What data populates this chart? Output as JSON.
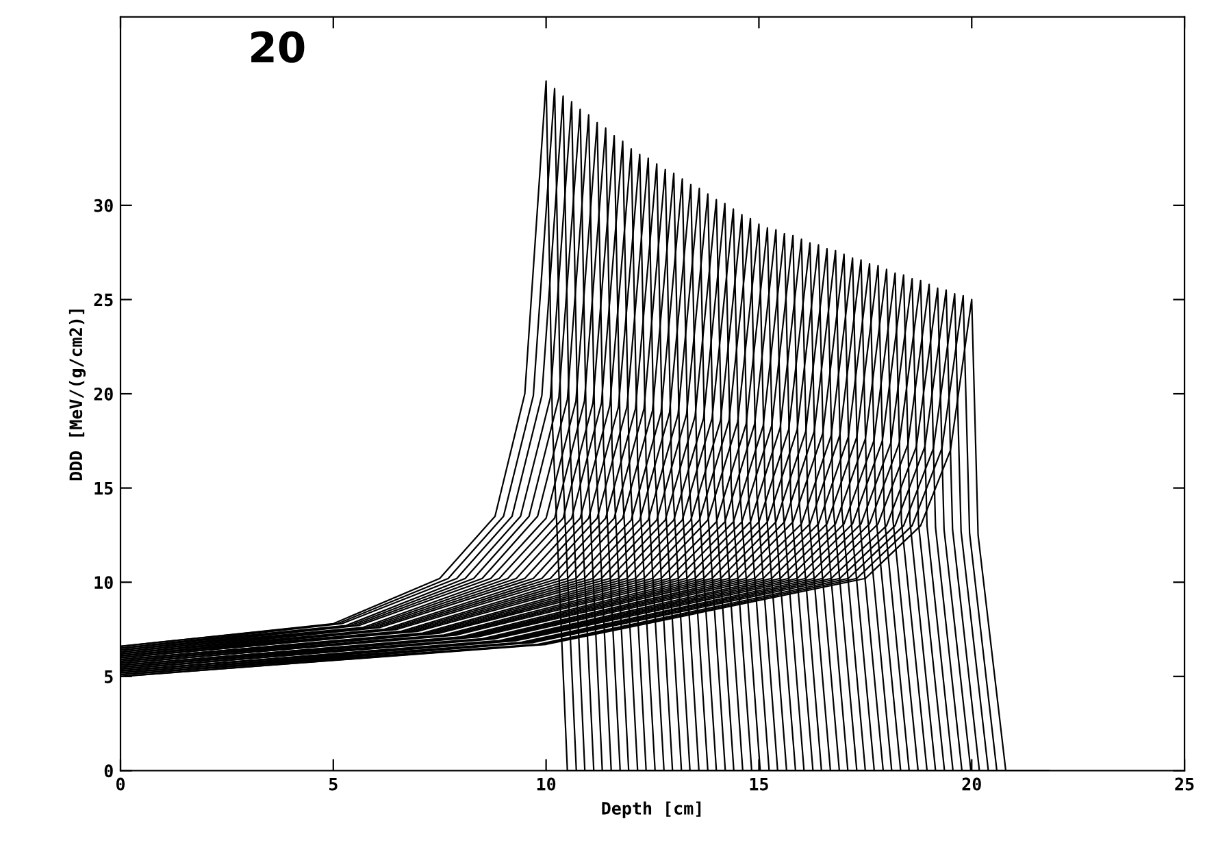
{
  "chart_data": {
    "type": "line",
    "xlabel": "Depth [cm]",
    "ylabel": "DDD [MeV/(g/cm2)]",
    "annotations": [
      "20"
    ],
    "xlim": [
      0,
      25
    ],
    "ylim": [
      0,
      40
    ],
    "xticks": [
      0,
      5,
      10,
      15,
      20,
      25
    ],
    "yticks": [
      0,
      5,
      10,
      15,
      20,
      25,
      30
    ],
    "grid": false,
    "legend": false,
    "marker": "none",
    "line_style": "solid",
    "series": [
      {
        "color": "#000000",
        "x": [
          0,
          5.0,
          7.5,
          8.8,
          9.5,
          10.0,
          10.15,
          10.5,
          21.8
        ],
        "values": [
          6.6,
          7.8,
          10.2,
          13.5,
          20.0,
          36.6,
          18.3,
          0,
          0
        ]
      },
      {
        "color": "#000000",
        "x": [
          0,
          5.1,
          7.7,
          9.0,
          9.7,
          10.2,
          10.35,
          10.71,
          21.8
        ],
        "values": [
          6.6,
          7.8,
          10.2,
          13.5,
          19.9,
          36.2,
          18.1,
          0,
          0
        ]
      },
      {
        "color": "#000000",
        "x": [
          0,
          5.2,
          7.9,
          9.2,
          9.9,
          10.4,
          10.55,
          10.91,
          21.8
        ],
        "values": [
          6.5,
          7.8,
          10.2,
          13.5,
          19.9,
          35.8,
          17.9,
          0,
          0
        ]
      },
      {
        "color": "#000000",
        "x": [
          0,
          5.3,
          8.1,
          9.4,
          10.1,
          10.6,
          10.75,
          11.12,
          21.8
        ],
        "values": [
          6.5,
          7.7,
          10.2,
          13.5,
          19.8,
          35.5,
          17.8,
          0,
          0
        ]
      },
      {
        "color": "#000000",
        "x": [
          0,
          5.4,
          8.3,
          9.6,
          10.3,
          10.8,
          10.95,
          11.32,
          21.8
        ],
        "values": [
          6.5,
          7.7,
          10.2,
          13.5,
          19.8,
          35.1,
          17.6,
          0,
          0
        ]
      },
      {
        "color": "#000000",
        "x": [
          0,
          5.5,
          8.5,
          9.8,
          10.5,
          11.0,
          11.15,
          11.53,
          21.8
        ],
        "values": [
          6.4,
          7.7,
          10.2,
          13.5,
          19.7,
          34.8,
          17.4,
          0,
          0
        ]
      },
      {
        "color": "#000000",
        "x": [
          0,
          5.6,
          8.7,
          10.0,
          10.7,
          11.2,
          11.35,
          11.74,
          21.8
        ],
        "values": [
          6.4,
          7.7,
          10.2,
          13.4,
          19.6,
          34.4,
          17.2,
          0,
          0
        ]
      },
      {
        "color": "#000000",
        "x": [
          0,
          5.7,
          8.9,
          10.2,
          10.9,
          11.4,
          11.55,
          11.94,
          21.8
        ],
        "values": [
          6.4,
          7.6,
          10.2,
          13.4,
          19.6,
          34.1,
          17.1,
          0,
          0
        ]
      },
      {
        "color": "#000000",
        "x": [
          0,
          5.8,
          9.1,
          10.4,
          11.1,
          11.6,
          11.75,
          12.15,
          21.8
        ],
        "values": [
          6.3,
          7.6,
          10.2,
          13.4,
          19.5,
          33.7,
          16.9,
          0,
          0
        ]
      },
      {
        "color": "#000000",
        "x": [
          0,
          5.9,
          9.3,
          10.6,
          11.3,
          11.8,
          11.95,
          12.35,
          21.8
        ],
        "values": [
          6.3,
          7.6,
          10.2,
          13.4,
          19.5,
          33.4,
          16.7,
          0,
          0
        ]
      },
      {
        "color": "#000000",
        "x": [
          0,
          6.0,
          9.5,
          10.8,
          11.5,
          12.0,
          12.15,
          12.56,
          21.8
        ],
        "values": [
          6.3,
          7.6,
          10.2,
          13.4,
          19.4,
          33.0,
          16.5,
          0,
          0
        ]
      },
      {
        "color": "#000000",
        "x": [
          0,
          6.1,
          9.7,
          11.0,
          11.7,
          12.2,
          12.35,
          12.77,
          21.8
        ],
        "values": [
          6.2,
          7.6,
          10.2,
          13.4,
          19.3,
          32.7,
          16.4,
          0,
          0
        ]
      },
      {
        "color": "#000000",
        "x": [
          0,
          6.2,
          9.9,
          11.2,
          11.9,
          12.4,
          12.55,
          12.97,
          21.8
        ],
        "values": [
          6.2,
          7.5,
          10.2,
          13.4,
          19.3,
          32.5,
          16.3,
          0,
          0
        ]
      },
      {
        "color": "#000000",
        "x": [
          0,
          6.3,
          10.1,
          11.4,
          12.1,
          12.6,
          12.75,
          13.18,
          21.8
        ],
        "values": [
          6.2,
          7.5,
          10.2,
          13.4,
          19.2,
          32.2,
          16.1,
          0,
          0
        ]
      },
      {
        "color": "#000000",
        "x": [
          0,
          6.4,
          10.3,
          11.6,
          12.3,
          12.8,
          12.95,
          13.38,
          21.8
        ],
        "values": [
          6.1,
          7.5,
          10.2,
          13.4,
          19.2,
          31.9,
          16.0,
          0,
          0
        ]
      },
      {
        "color": "#000000",
        "x": [
          0,
          6.5,
          10.5,
          11.8,
          12.5,
          13.0,
          13.15,
          13.59,
          21.8
        ],
        "values": [
          6.1,
          7.5,
          10.2,
          13.4,
          19.1,
          31.7,
          15.9,
          0,
          0
        ]
      },
      {
        "color": "#000000",
        "x": [
          0,
          6.6,
          10.7,
          12.0,
          12.7,
          13.2,
          13.35,
          13.8,
          21.8
        ],
        "values": [
          6.1,
          7.4,
          10.2,
          13.3,
          19.0,
          31.4,
          15.7,
          0,
          0
        ]
      },
      {
        "color": "#000000",
        "x": [
          0,
          6.7,
          10.9,
          12.2,
          12.9,
          13.4,
          13.55,
          14.0,
          21.8
        ],
        "values": [
          6.1,
          7.4,
          10.2,
          13.3,
          19.0,
          31.1,
          15.6,
          0,
          0
        ]
      },
      {
        "color": "#000000",
        "x": [
          0,
          6.8,
          11.1,
          12.4,
          13.1,
          13.6,
          13.75,
          14.21,
          21.8
        ],
        "values": [
          6.0,
          7.4,
          10.2,
          13.3,
          18.9,
          30.9,
          15.5,
          0,
          0
        ]
      },
      {
        "color": "#000000",
        "x": [
          0,
          6.9,
          11.3,
          12.6,
          13.3,
          13.8,
          13.95,
          14.41,
          21.8
        ],
        "values": [
          6.0,
          7.4,
          10.2,
          13.3,
          18.9,
          30.6,
          15.3,
          0,
          0
        ]
      },
      {
        "color": "#000000",
        "x": [
          0,
          7.0,
          11.5,
          12.8,
          13.5,
          14.0,
          14.15,
          14.62,
          21.8
        ],
        "values": [
          6.0,
          7.4,
          10.2,
          13.3,
          18.8,
          30.3,
          15.2,
          0,
          0
        ]
      },
      {
        "color": "#000000",
        "x": [
          0,
          7.1,
          11.7,
          13.0,
          13.7,
          14.2,
          14.35,
          14.83,
          21.8
        ],
        "values": [
          5.9,
          7.3,
          10.2,
          13.3,
          18.7,
          30.1,
          15.1,
          0,
          0
        ]
      },
      {
        "color": "#000000",
        "x": [
          0,
          7.2,
          11.9,
          13.2,
          13.9,
          14.4,
          14.55,
          15.03,
          21.8
        ],
        "values": [
          5.9,
          7.3,
          10.2,
          13.3,
          18.7,
          29.8,
          14.9,
          0,
          0
        ]
      },
      {
        "color": "#000000",
        "x": [
          0,
          7.3,
          12.1,
          13.4,
          14.1,
          14.6,
          14.75,
          15.24,
          21.8
        ],
        "values": [
          5.9,
          7.3,
          10.2,
          13.3,
          18.6,
          29.5,
          14.8,
          0,
          0
        ]
      },
      {
        "color": "#000000",
        "x": [
          0,
          7.4,
          12.3,
          13.6,
          14.3,
          14.8,
          14.95,
          15.44,
          21.8
        ],
        "values": [
          5.8,
          7.3,
          10.2,
          13.3,
          18.6,
          29.3,
          14.7,
          0,
          0
        ]
      },
      {
        "color": "#000000",
        "x": [
          0,
          7.5,
          12.5,
          13.8,
          14.5,
          15.0,
          15.15,
          15.65,
          21.8
        ],
        "values": [
          5.8,
          7.3,
          10.2,
          13.3,
          18.5,
          29.0,
          14.5,
          0,
          0
        ]
      },
      {
        "color": "#000000",
        "x": [
          0,
          7.6,
          12.7,
          14.0,
          14.7,
          15.2,
          15.35,
          15.86,
          21.8
        ],
        "values": [
          5.8,
          7.2,
          10.2,
          13.2,
          18.4,
          28.8,
          14.4,
          0,
          0
        ]
      },
      {
        "color": "#000000",
        "x": [
          0,
          7.7,
          12.9,
          14.2,
          14.9,
          15.4,
          15.55,
          16.06,
          21.8
        ],
        "values": [
          5.7,
          7.2,
          10.2,
          13.2,
          18.4,
          28.7,
          14.4,
          0,
          0
        ]
      },
      {
        "color": "#000000",
        "x": [
          0,
          7.8,
          13.1,
          14.4,
          15.1,
          15.6,
          15.75,
          16.27,
          21.8
        ],
        "values": [
          5.7,
          7.2,
          10.2,
          13.2,
          18.3,
          28.5,
          14.3,
          0,
          0
        ]
      },
      {
        "color": "#000000",
        "x": [
          0,
          7.9,
          13.3,
          14.6,
          15.3,
          15.8,
          15.95,
          16.47,
          21.8
        ],
        "values": [
          5.7,
          7.2,
          10.2,
          13.2,
          18.3,
          28.4,
          14.2,
          0,
          0
        ]
      },
      {
        "color": "#000000",
        "x": [
          0,
          8.0,
          13.5,
          14.8,
          15.5,
          16.0,
          16.15,
          16.68,
          21.8
        ],
        "values": [
          5.6,
          7.1,
          10.2,
          13.2,
          18.2,
          28.2,
          14.1,
          0,
          0
        ]
      },
      {
        "color": "#000000",
        "x": [
          0,
          8.1,
          13.7,
          15.0,
          15.7,
          16.2,
          16.35,
          16.89,
          21.8
        ],
        "values": [
          5.6,
          7.1,
          10.2,
          13.2,
          18.1,
          28.0,
          14.0,
          0,
          0
        ]
      },
      {
        "color": "#000000",
        "x": [
          0,
          8.2,
          13.9,
          15.2,
          15.9,
          16.4,
          16.55,
          17.09,
          21.8
        ],
        "values": [
          5.6,
          7.1,
          10.2,
          13.2,
          18.1,
          27.9,
          14.0,
          0,
          0
        ]
      },
      {
        "color": "#000000",
        "x": [
          0,
          8.3,
          14.1,
          15.4,
          16.1,
          16.6,
          16.75,
          17.3,
          21.8
        ],
        "values": [
          5.5,
          7.1,
          10.2,
          13.2,
          18.0,
          27.7,
          13.9,
          0,
          0
        ]
      },
      {
        "color": "#000000",
        "x": [
          0,
          8.4,
          14.3,
          15.6,
          16.3,
          16.8,
          16.95,
          17.5,
          21.8
        ],
        "values": [
          5.5,
          7.1,
          10.2,
          13.2,
          18.0,
          27.6,
          13.8,
          0,
          0
        ]
      },
      {
        "color": "#000000",
        "x": [
          0,
          8.5,
          14.5,
          15.8,
          16.5,
          17.0,
          17.15,
          17.71,
          21.8
        ],
        "values": [
          5.5,
          7.0,
          10.2,
          13.2,
          17.9,
          27.4,
          13.7,
          0,
          0
        ]
      },
      {
        "color": "#000000",
        "x": [
          0,
          8.6,
          14.7,
          16.0,
          16.7,
          17.2,
          17.35,
          17.92,
          21.8
        ],
        "values": [
          5.4,
          7.0,
          10.2,
          13.1,
          17.8,
          27.2,
          13.6,
          0,
          0
        ]
      },
      {
        "color": "#000000",
        "x": [
          0,
          8.7,
          14.9,
          16.2,
          16.9,
          17.4,
          17.55,
          18.12,
          21.8
        ],
        "values": [
          5.4,
          7.0,
          10.2,
          13.1,
          17.8,
          27.1,
          13.6,
          0,
          0
        ]
      },
      {
        "color": "#000000",
        "x": [
          0,
          8.8,
          15.1,
          16.4,
          17.1,
          17.6,
          17.75,
          18.33,
          21.8
        ],
        "values": [
          5.4,
          7.0,
          10.2,
          13.1,
          17.7,
          26.9,
          13.5,
          0,
          0
        ]
      },
      {
        "color": "#000000",
        "x": [
          0,
          8.9,
          15.3,
          16.6,
          17.3,
          17.8,
          17.95,
          18.53,
          21.8
        ],
        "values": [
          5.3,
          6.9,
          10.2,
          13.1,
          17.7,
          26.8,
          13.4,
          0,
          0
        ]
      },
      {
        "color": "#000000",
        "x": [
          0,
          9.0,
          15.5,
          16.8,
          17.5,
          18.0,
          18.15,
          18.74,
          21.8
        ],
        "values": [
          5.3,
          6.9,
          10.2,
          13.1,
          17.6,
          26.6,
          13.3,
          0,
          0
        ]
      },
      {
        "color": "#000000",
        "x": [
          0,
          9.1,
          15.7,
          17.0,
          17.7,
          18.2,
          18.35,
          18.95,
          21.8
        ],
        "values": [
          5.3,
          6.9,
          10.2,
          13.1,
          17.5,
          26.4,
          13.2,
          0,
          0
        ]
      },
      {
        "color": "#000000",
        "x": [
          0,
          9.2,
          15.9,
          17.2,
          17.9,
          18.4,
          18.55,
          19.15,
          21.8
        ],
        "values": [
          5.3,
          6.9,
          10.2,
          13.1,
          17.5,
          26.3,
          13.2,
          0,
          0
        ]
      },
      {
        "color": "#000000",
        "x": [
          0,
          9.3,
          16.1,
          17.4,
          18.1,
          18.6,
          18.75,
          19.36,
          21.8
        ],
        "values": [
          5.2,
          6.9,
          10.2,
          13.1,
          17.4,
          26.1,
          13.1,
          0,
          0
        ]
      },
      {
        "color": "#000000",
        "x": [
          0,
          9.4,
          16.3,
          17.6,
          18.3,
          18.8,
          18.95,
          19.56,
          21.8
        ],
        "values": [
          5.2,
          6.8,
          10.2,
          13.1,
          17.4,
          26.0,
          13.0,
          0,
          0
        ]
      },
      {
        "color": "#000000",
        "x": [
          0,
          9.5,
          16.5,
          17.8,
          18.5,
          19.0,
          19.15,
          19.77,
          21.8
        ],
        "values": [
          5.2,
          6.8,
          10.2,
          13.1,
          17.3,
          25.8,
          12.9,
          0,
          0
        ]
      },
      {
        "color": "#000000",
        "x": [
          0,
          9.6,
          16.7,
          18.0,
          18.7,
          19.2,
          19.35,
          19.98,
          21.8
        ],
        "values": [
          5.1,
          6.8,
          10.2,
          13.0,
          17.2,
          25.6,
          12.8,
          0,
          0
        ]
      },
      {
        "color": "#000000",
        "x": [
          0,
          9.7,
          16.9,
          18.2,
          18.9,
          19.4,
          19.55,
          20.18,
          21.8
        ],
        "values": [
          5.1,
          6.8,
          10.2,
          13.0,
          17.2,
          25.5,
          12.8,
          0,
          0
        ]
      },
      {
        "color": "#000000",
        "x": [
          0,
          9.8,
          17.1,
          18.4,
          19.1,
          19.6,
          19.75,
          20.39,
          21.8
        ],
        "values": [
          5.1,
          6.7,
          10.2,
          13.0,
          17.1,
          25.3,
          12.7,
          0,
          0
        ]
      },
      {
        "color": "#000000",
        "x": [
          0,
          9.9,
          17.3,
          18.6,
          19.3,
          19.8,
          19.95,
          20.59,
          21.8
        ],
        "values": [
          5.0,
          6.7,
          10.2,
          13.0,
          17.1,
          25.2,
          12.6,
          0,
          0
        ]
      },
      {
        "color": "#000000",
        "x": [
          0,
          10.0,
          17.5,
          18.8,
          19.5,
          20.0,
          20.15,
          20.8,
          21.8
        ],
        "values": [
          5.0,
          6.7,
          10.2,
          13.0,
          17.0,
          25.0,
          12.5,
          0,
          0
        ]
      }
    ]
  }
}
